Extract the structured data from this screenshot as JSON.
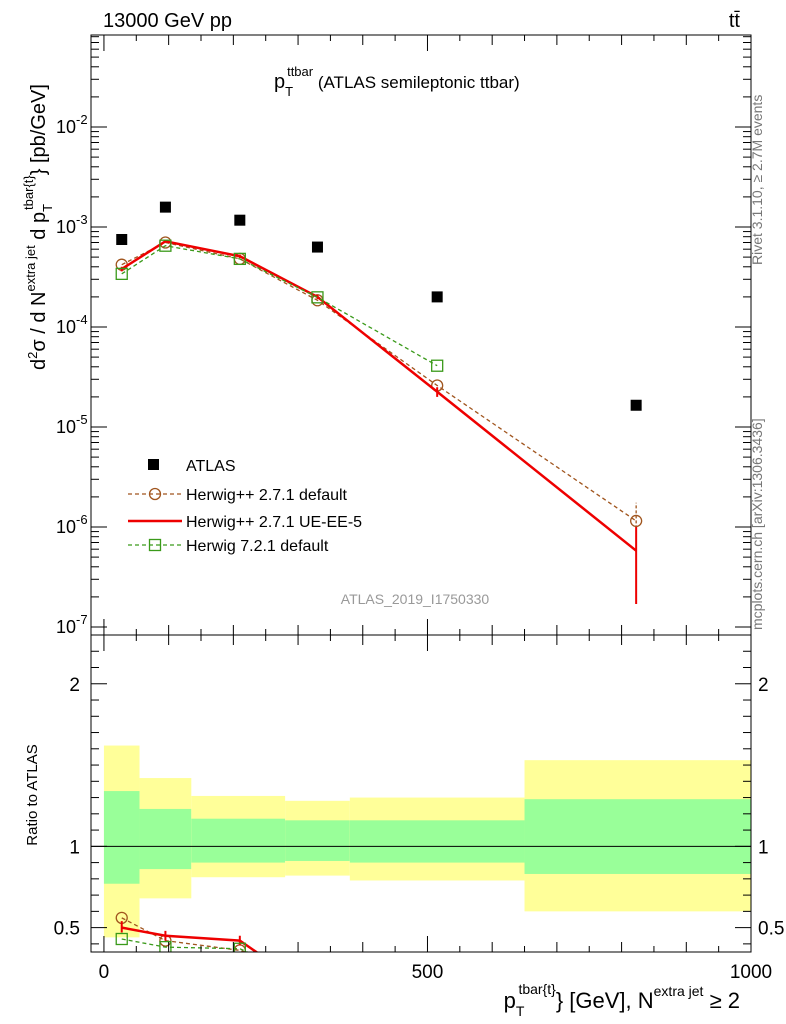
{
  "header": {
    "left": "13000 GeV pp",
    "right": "tt̄"
  },
  "side_labels": {
    "rivet": "Rivet 3.1.10, ≥ 2.7M events",
    "mcplots": "mcplots.cern.ch [arXiv:1306.3436]"
  },
  "analysis_id": "ATLAS_2019_I1750330",
  "chart_data": [
    {
      "type": "scatter",
      "panel": "main",
      "title_main": "p",
      "title_sub": "T",
      "title_sup": "ttbar",
      "title_rest": " (ATLAS semileptonic ttbar)",
      "ylabel": "d²σ / d N^extra jet d p_T^tbar{t} [pb/GeV]",
      "yscale": "log",
      "ylim": [
        1e-07,
        0.1
      ],
      "xlim": [
        -20,
        1000
      ],
      "y_ticks": [
        "10^-7",
        "10^-6",
        "10^-5",
        "10^-4",
        "10^-3",
        "10^-2"
      ],
      "legend_position": "bottom-left",
      "series": [
        {
          "name": "ATLAS",
          "style": "square-marker",
          "color": "#000000",
          "x": [
            27.5,
            95,
            210,
            330,
            515,
            822.5
          ],
          "y": [
            0.00075,
            0.00158,
            0.00117,
            0.00063,
            0.0002,
            1.65e-05
          ]
        },
        {
          "name": "Herwig++ 2.7.1 default",
          "style": "dashed-circle",
          "color": "#a0551e",
          "x": [
            27.5,
            95,
            210,
            330,
            515,
            822.5
          ],
          "y": [
            0.00042,
            0.0007,
            0.00048,
            0.000185,
            2.6e-05,
            1.15e-06
          ],
          "yerr": [
            0,
            0,
            0,
            0,
            0,
            6e-07
          ]
        },
        {
          "name": "Herwig++ 2.7.1 UE-EE-5",
          "style": "solid-line",
          "color": "#ee0000",
          "x": [
            27.5,
            95,
            210,
            330,
            515,
            822.5
          ],
          "y": [
            0.00038,
            0.00072,
            0.00051,
            0.0002,
            2.25e-05,
            5.8e-07
          ],
          "ylow": [
            0.00036,
            0.0007,
            0.00049,
            0.00019,
            2e-05,
            1.7e-07
          ],
          "yhigh": [
            0.0004,
            0.00074,
            0.00053,
            0.00021,
            2.5e-05,
            1e-06
          ]
        },
        {
          "name": "Herwig 7.2.1 default",
          "style": "dashed-square",
          "color": "#3a9a1a",
          "x": [
            27.5,
            95,
            210,
            330,
            515
          ],
          "y": [
            0.00034,
            0.00065,
            0.00048,
            0.000198,
            4.1e-05
          ]
        }
      ]
    },
    {
      "type": "line",
      "panel": "ratio",
      "ylabel": "Ratio to ATLAS",
      "xlabel_main": "p",
      "xlabel_sub": "T",
      "xlabel_sup": "tbar{t}",
      "xlabel_rest": "} [GeV], N",
      "xlabel_sup2": "extra jet",
      "xlabel_tail": " ≥ 2",
      "ylim": [
        0.35,
        2.3
      ],
      "xlim": [
        -20,
        1000
      ],
      "x_ticks": [
        "0",
        "500",
        "1000"
      ],
      "y_ticks": [
        "0.5",
        "1",
        "2"
      ],
      "reference_line": 1,
      "bands": {
        "edges": [
          0,
          55,
          135,
          280,
          380,
          650,
          1000
        ],
        "inner_low": [
          0.77,
          0.86,
          0.9,
          0.91,
          0.9,
          0.83
        ],
        "inner_high": [
          1.34,
          1.23,
          1.17,
          1.16,
          1.16,
          1.29
        ],
        "outer_low": [
          0.44,
          0.68,
          0.81,
          0.82,
          0.79,
          0.6
        ],
        "outer_high": [
          1.62,
          1.42,
          1.31,
          1.28,
          1.3,
          1.53
        ],
        "inner_color": "#99ff99",
        "outer_color": "#ffff99"
      },
      "series": [
        {
          "name": "Herwig++ 2.7.1 default",
          "color": "#a0551e",
          "x": [
            27.5,
            95,
            210,
            250
          ],
          "y": [
            0.56,
            0.42,
            0.36,
            0.31
          ],
          "markers": [
            true,
            true,
            true,
            false
          ]
        },
        {
          "name": "Herwig++ 2.7.1 UE-EE-5",
          "color": "#ee0000",
          "x": [
            27.5,
            95,
            210,
            250
          ],
          "y": [
            0.5,
            0.45,
            0.42,
            0.31
          ],
          "ylow": [
            0.47,
            0.42,
            0.39,
            0.31
          ],
          "yhigh": [
            0.54,
            0.48,
            0.45,
            0.31
          ]
        },
        {
          "name": "Herwig 7.2.1 default",
          "color": "#3a9a1a",
          "x": [
            27.5,
            95,
            210,
            245
          ],
          "y": [
            0.43,
            0.38,
            0.37,
            0.31
          ],
          "markers": [
            true,
            true,
            true,
            false
          ]
        }
      ]
    }
  ]
}
